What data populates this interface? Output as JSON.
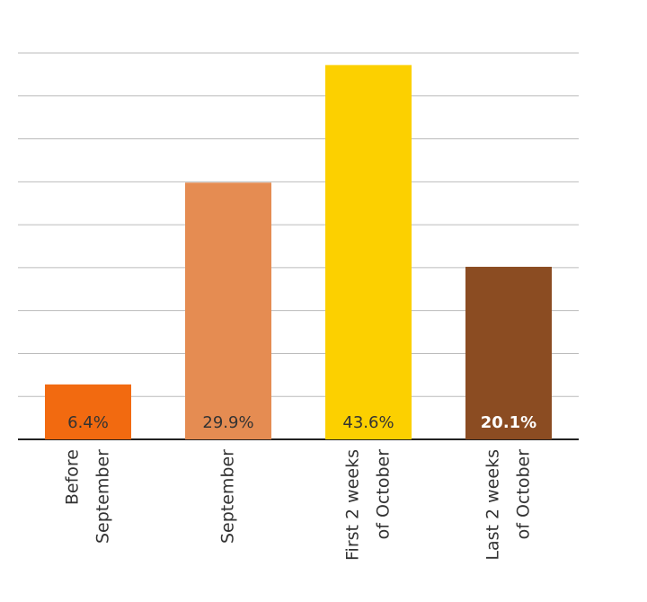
{
  "chart_data": {
    "type": "bar",
    "categories": [
      [
        "Before",
        "September"
      ],
      [
        "September"
      ],
      [
        "First 2 weeks",
        "of October"
      ],
      [
        "Last 2 weeks",
        "of October"
      ]
    ],
    "values": [
      6.4,
      29.9,
      43.6,
      20.1
    ],
    "value_labels": [
      "6.4%",
      "29.9%",
      "43.6%",
      "20.1%"
    ],
    "colors": [
      "#f26a10",
      "#e58c52",
      "#fcd000",
      "#8b4c22"
    ],
    "value_label_colors": [
      "#333333",
      "#333333",
      "#333333",
      "#ffffff"
    ],
    "ylim": [
      0,
      45
    ],
    "yticks": [
      0,
      5,
      10,
      15,
      20,
      25,
      30,
      35,
      40,
      45
    ],
    "grid": true
  }
}
